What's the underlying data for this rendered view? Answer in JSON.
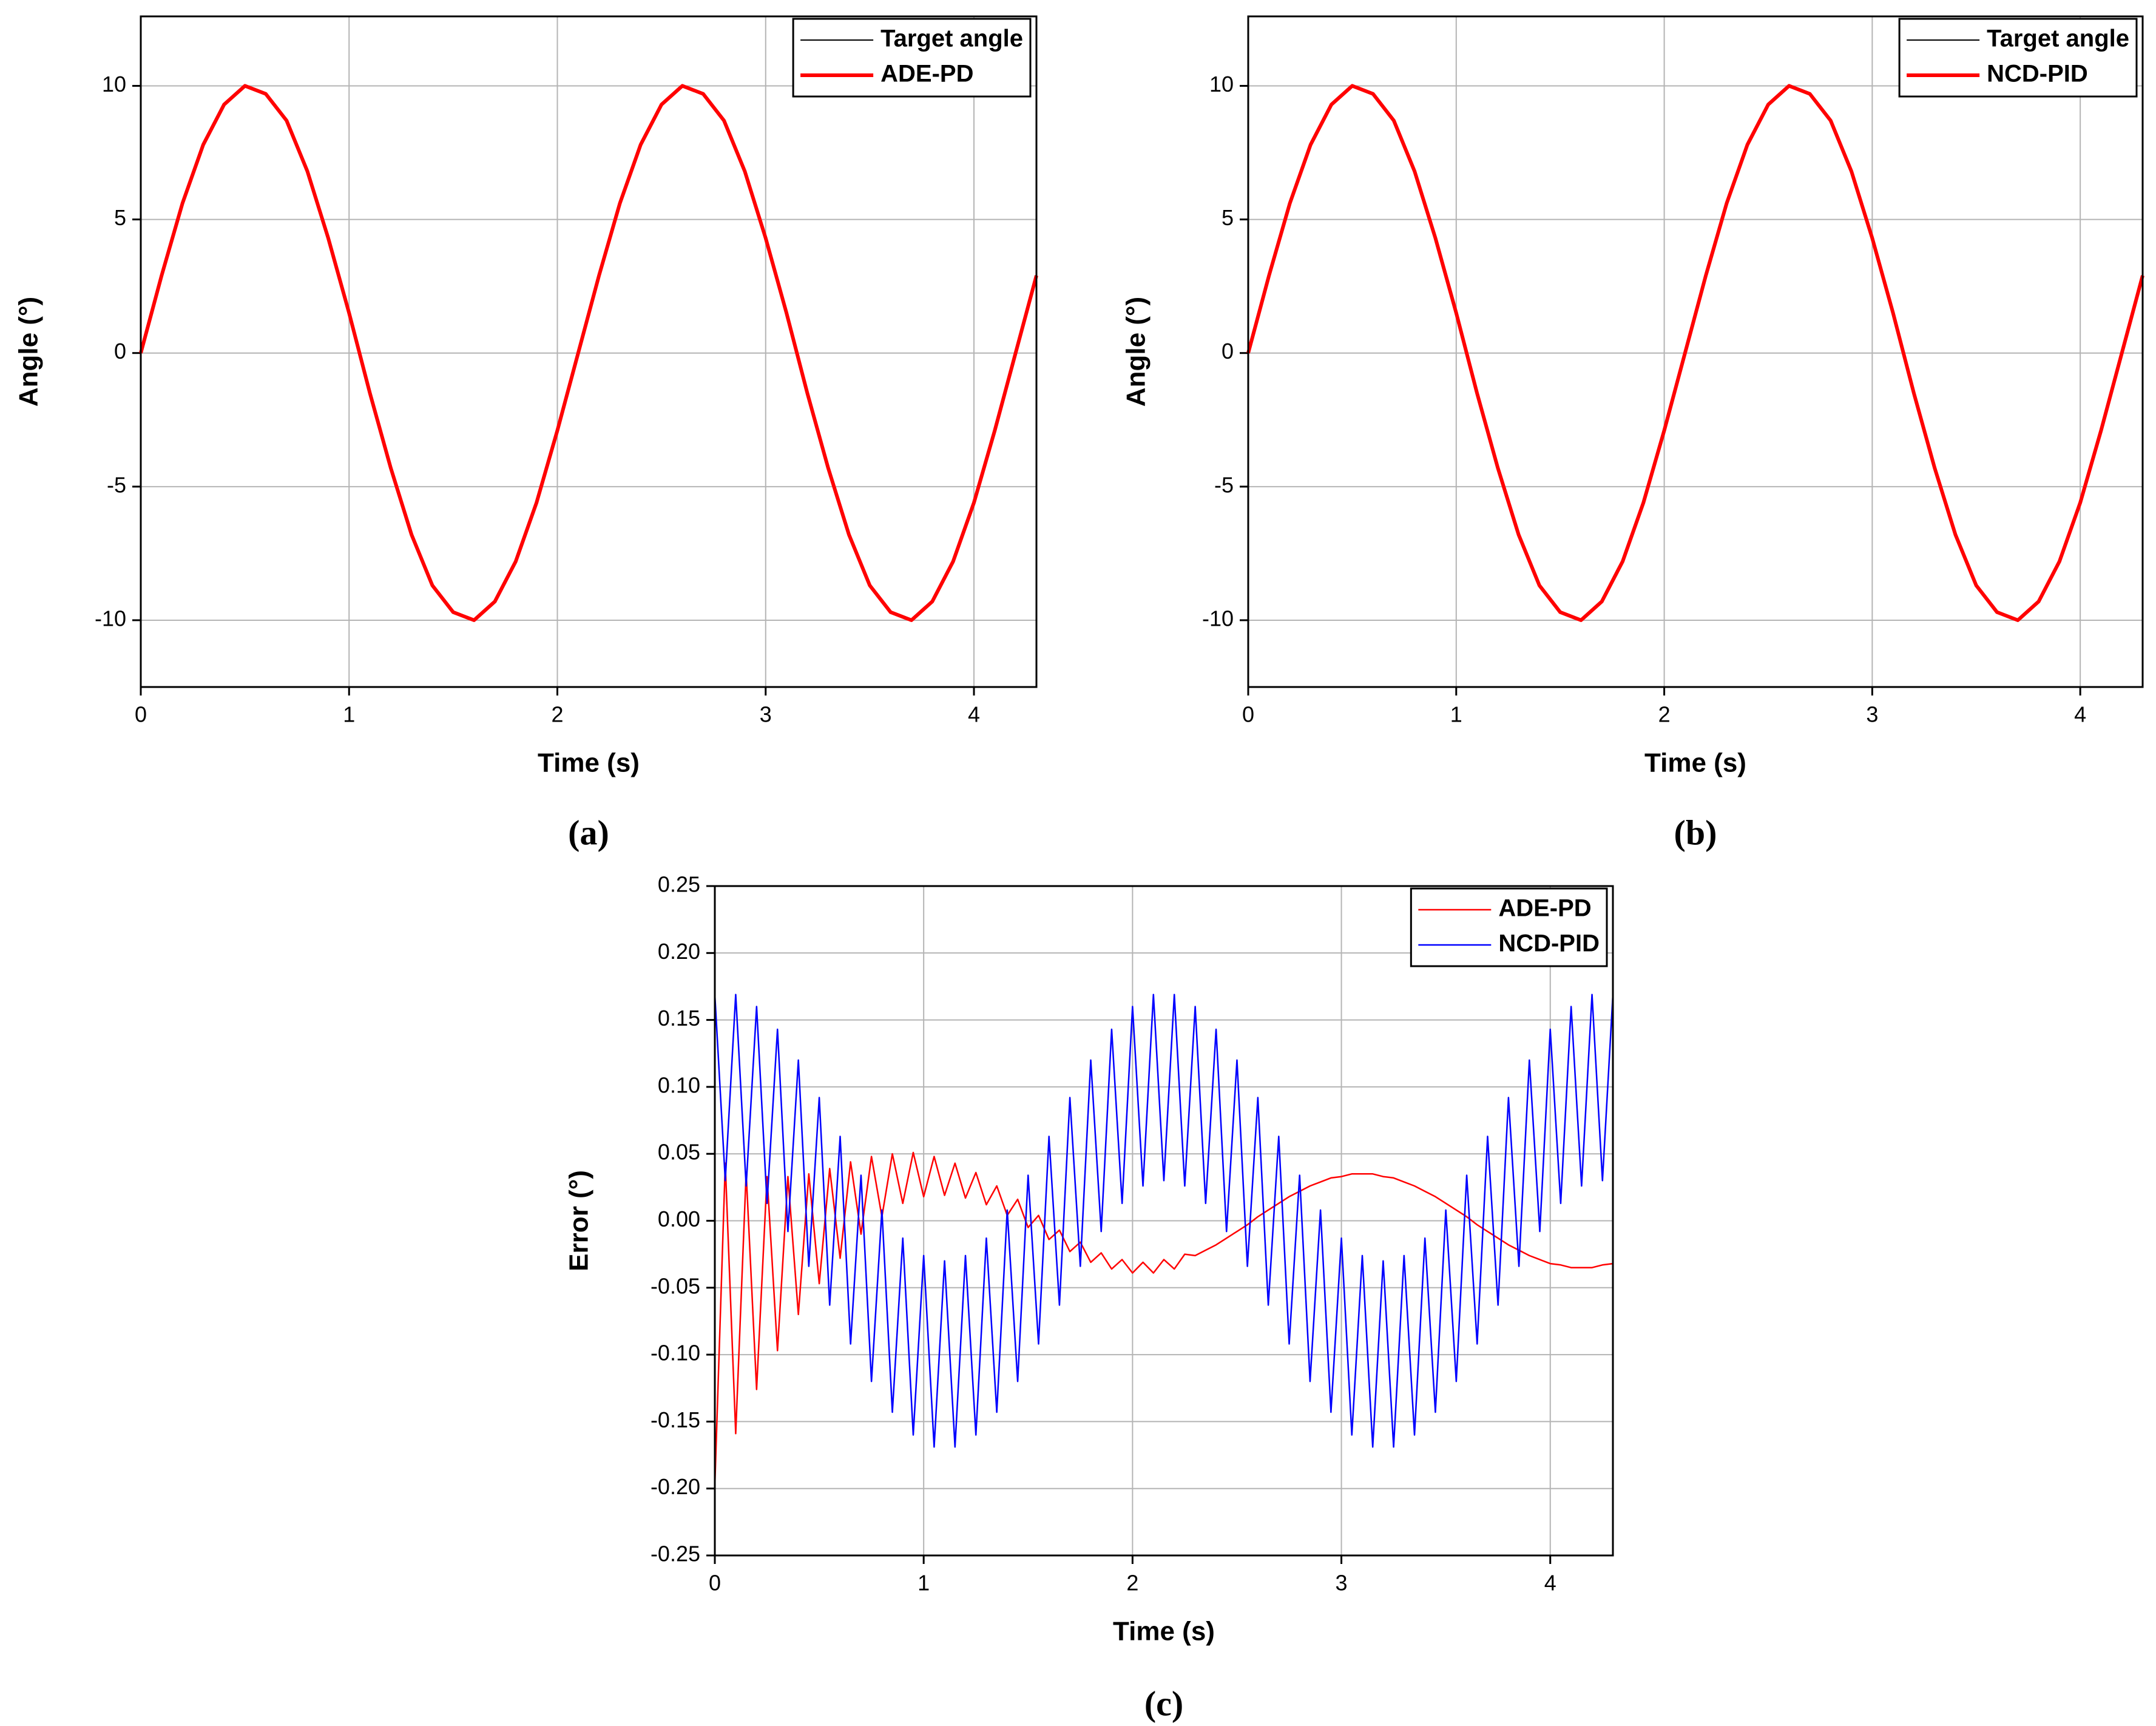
{
  "chart_data": [
    {
      "type": "line",
      "caption": "(a)",
      "x_label": "Time (s)",
      "y_label": "Angle (°)",
      "x": [
        0,
        0.1,
        0.2,
        0.3,
        0.4,
        0.5,
        0.6,
        0.7,
        0.8,
        0.9,
        1,
        1.1,
        1.2,
        1.3,
        1.4,
        1.5,
        1.6,
        1.7,
        1.8,
        1.9,
        2,
        2.1,
        2.2,
        2.3,
        2.4,
        2.5,
        2.6,
        2.7,
        2.8,
        2.9,
        3,
        3.1,
        3.2,
        3.3,
        3.4,
        3.5,
        3.6,
        3.7,
        3.8,
        3.9,
        4,
        4.1,
        4.2,
        4.3
      ],
      "series": [
        {
          "name": "Target angle",
          "color": "#000000",
          "values": [
            0,
            2.9,
            5.6,
            7.8,
            9.3,
            10,
            9.7,
            8.7,
            6.8,
            4.3,
            1.5,
            -1.5,
            -4.3,
            -6.8,
            -8.7,
            -9.7,
            -10,
            -9.3,
            -7.8,
            -5.6,
            -2.9,
            0,
            2.9,
            5.6,
            7.8,
            9.3,
            10,
            9.7,
            8.7,
            6.8,
            4.3,
            1.5,
            -1.5,
            -4.3,
            -6.8,
            -8.7,
            -9.7,
            -10,
            -9.3,
            -7.8,
            -5.6,
            -2.9,
            0,
            2.9
          ]
        },
        {
          "name": "ADE-PD",
          "color": "#ff0000",
          "values": [
            0,
            2.9,
            5.6,
            7.8,
            9.3,
            10,
            9.7,
            8.7,
            6.8,
            4.3,
            1.5,
            -1.5,
            -4.3,
            -6.8,
            -8.7,
            -9.7,
            -10,
            -9.3,
            -7.8,
            -5.6,
            -2.9,
            0,
            2.9,
            5.6,
            7.8,
            9.3,
            10,
            9.7,
            8.7,
            6.8,
            4.3,
            1.5,
            -1.5,
            -4.3,
            -6.8,
            -8.7,
            -9.7,
            -10,
            -9.3,
            -7.8,
            -5.6,
            -2.9,
            0,
            2.9
          ]
        }
      ],
      "xlim": [
        0,
        4.3
      ],
      "ylim": [
        -12.5,
        12.6
      ],
      "xticks": [
        0,
        1,
        2,
        3,
        4
      ],
      "yticks": [
        -10,
        -5,
        0,
        5,
        10
      ],
      "grid": true,
      "legend": "upper right"
    },
    {
      "type": "line",
      "caption": "(b)",
      "x_label": "Time (s)",
      "y_label": "Angle (°)",
      "x": [
        0,
        0.1,
        0.2,
        0.3,
        0.4,
        0.5,
        0.6,
        0.7,
        0.8,
        0.9,
        1,
        1.1,
        1.2,
        1.3,
        1.4,
        1.5,
        1.6,
        1.7,
        1.8,
        1.9,
        2,
        2.1,
        2.2,
        2.3,
        2.4,
        2.5,
        2.6,
        2.7,
        2.8,
        2.9,
        3,
        3.1,
        3.2,
        3.3,
        3.4,
        3.5,
        3.6,
        3.7,
        3.8,
        3.9,
        4,
        4.1,
        4.2,
        4.3
      ],
      "series": [
        {
          "name": "Target angle",
          "color": "#000000",
          "values": [
            0,
            2.9,
            5.6,
            7.8,
            9.3,
            10,
            9.7,
            8.7,
            6.8,
            4.3,
            1.5,
            -1.5,
            -4.3,
            -6.8,
            -8.7,
            -9.7,
            -10,
            -9.3,
            -7.8,
            -5.6,
            -2.9,
            0,
            2.9,
            5.6,
            7.8,
            9.3,
            10,
            9.7,
            8.7,
            6.8,
            4.3,
            1.5,
            -1.5,
            -4.3,
            -6.8,
            -8.7,
            -9.7,
            -10,
            -9.3,
            -7.8,
            -5.6,
            -2.9,
            0,
            2.9
          ]
        },
        {
          "name": "NCD-PID",
          "color": "#ff0000",
          "values": [
            0,
            2.9,
            5.6,
            7.8,
            9.3,
            10,
            9.7,
            8.7,
            6.8,
            4.3,
            1.5,
            -1.5,
            -4.3,
            -6.8,
            -8.7,
            -9.7,
            -10,
            -9.3,
            -7.8,
            -5.6,
            -2.9,
            0,
            2.9,
            5.6,
            7.8,
            9.3,
            10,
            9.7,
            8.7,
            6.8,
            4.3,
            1.5,
            -1.5,
            -4.3,
            -6.8,
            -8.7,
            -9.7,
            -10,
            -9.3,
            -7.8,
            -5.6,
            -2.9,
            0,
            2.9
          ]
        }
      ],
      "xlim": [
        0,
        4.3
      ],
      "ylim": [
        -12.5,
        12.6
      ],
      "xticks": [
        0,
        1,
        2,
        3,
        4
      ],
      "yticks": [
        -10,
        -5,
        0,
        5,
        10
      ],
      "grid": true,
      "legend": "upper right"
    },
    {
      "type": "line",
      "caption": "(c)",
      "x_label": "Time (s)",
      "y_label": "Error (°)",
      "x": [
        0,
        0.05,
        0.1,
        0.15,
        0.2,
        0.25,
        0.3,
        0.35,
        0.4,
        0.45,
        0.5,
        0.55,
        0.6,
        0.65,
        0.7,
        0.75,
        0.8,
        0.85,
        0.9,
        0.95,
        1,
        1.05,
        1.1,
        1.15,
        1.2,
        1.25,
        1.3,
        1.35,
        1.4,
        1.45,
        1.5,
        1.55,
        1.6,
        1.65,
        1.7,
        1.75,
        1.8,
        1.85,
        1.9,
        1.95,
        2,
        2.05,
        2.1,
        2.15,
        2.2,
        2.25,
        2.3,
        2.35,
        2.4,
        2.45,
        2.5,
        2.55,
        2.6,
        2.65,
        2.7,
        2.75,
        2.8,
        2.85,
        2.9,
        2.95,
        3,
        3.05,
        3.1,
        3.15,
        3.2,
        3.25,
        3.3,
        3.35,
        3.4,
        3.45,
        3.5,
        3.55,
        3.6,
        3.65,
        3.7,
        3.75,
        3.8,
        3.85,
        3.9,
        3.95,
        4,
        4.05,
        4.1,
        4.15,
        4.2,
        4.25,
        4.3
      ],
      "series": [
        {
          "name": "ADE-PD",
          "color": "#ff0000",
          "values": [
            -0.198,
            0.043,
            -0.159,
            0.036,
            -0.126,
            0.033,
            -0.097,
            0.033,
            -0.07,
            0.035,
            -0.047,
            0.039,
            -0.028,
            0.044,
            -0.01,
            0.048,
            0.003,
            0.05,
            0.013,
            0.051,
            0.018,
            0.048,
            0.019,
            0.043,
            0.017,
            0.036,
            0.012,
            0.026,
            0.004,
            0.016,
            -0.005,
            0.004,
            -0.014,
            -0.007,
            -0.023,
            -0.016,
            -0.031,
            -0.024,
            -0.036,
            -0.029,
            -0.039,
            -0.031,
            -0.039,
            -0.029,
            -0.036,
            -0.025,
            -0.026,
            -0.022,
            -0.018,
            -0.013,
            -0.008,
            -0.003,
            0.003,
            0.008,
            0.013,
            0.018,
            0.022,
            0.026,
            0.029,
            0.032,
            0.033,
            0.035,
            0.035,
            0.035,
            0.033,
            0.032,
            0.029,
            0.026,
            0.022,
            0.018,
            0.013,
            0.008,
            0.003,
            -0.003,
            -0.008,
            -0.013,
            -0.018,
            -0.022,
            -0.026,
            -0.029,
            -0.032,
            -0.033,
            -0.035,
            -0.035,
            -0.035,
            -0.033,
            -0.032
          ]
        },
        {
          "name": "NCD-PID",
          "color": "#0000ff",
          "values": [
            0.169,
            0.03,
            0.169,
            0.026,
            0.16,
            0.013,
            0.143,
            -0.008,
            0.12,
            -0.034,
            0.092,
            -0.063,
            0.063,
            -0.092,
            0.034,
            -0.12,
            0.008,
            -0.143,
            -0.013,
            -0.16,
            -0.026,
            -0.169,
            -0.03,
            -0.169,
            -0.026,
            -0.16,
            -0.013,
            -0.143,
            0.008,
            -0.12,
            0.034,
            -0.092,
            0.063,
            -0.063,
            0.092,
            -0.034,
            0.12,
            -0.008,
            0.143,
            0.013,
            0.16,
            0.026,
            0.169,
            0.03,
            0.169,
            0.026,
            0.16,
            0.013,
            0.143,
            -0.008,
            0.12,
            -0.034,
            0.092,
            -0.063,
            0.063,
            -0.092,
            0.034,
            -0.12,
            0.008,
            -0.143,
            -0.013,
            -0.16,
            -0.026,
            -0.169,
            -0.03,
            -0.169,
            -0.026,
            -0.16,
            -0.013,
            -0.143,
            0.008,
            -0.12,
            0.034,
            -0.092,
            0.063,
            -0.063,
            0.092,
            -0.034,
            0.12,
            -0.008,
            0.143,
            0.013,
            0.16,
            0.026,
            0.169,
            0.03,
            0.169
          ]
        }
      ],
      "xlim": [
        0,
        4.3
      ],
      "ylim": [
        -0.25,
        0.25
      ],
      "xticks": [
        0,
        1,
        2,
        3,
        4
      ],
      "yticks": [
        -0.25,
        {
          "value": -0.2,
          "label": "-0.20"
        },
        -0.15,
        {
          "value": -0.1,
          "label": "-0.10"
        },
        -0.05,
        {
          "value": 0,
          "label": "0.00"
        },
        0.05,
        {
          "value": 0.1,
          "label": "0.10"
        },
        0.15,
        {
          "value": 0.2,
          "label": "0.20"
        },
        0.25
      ],
      "grid": true,
      "legend": "upper right"
    }
  ]
}
